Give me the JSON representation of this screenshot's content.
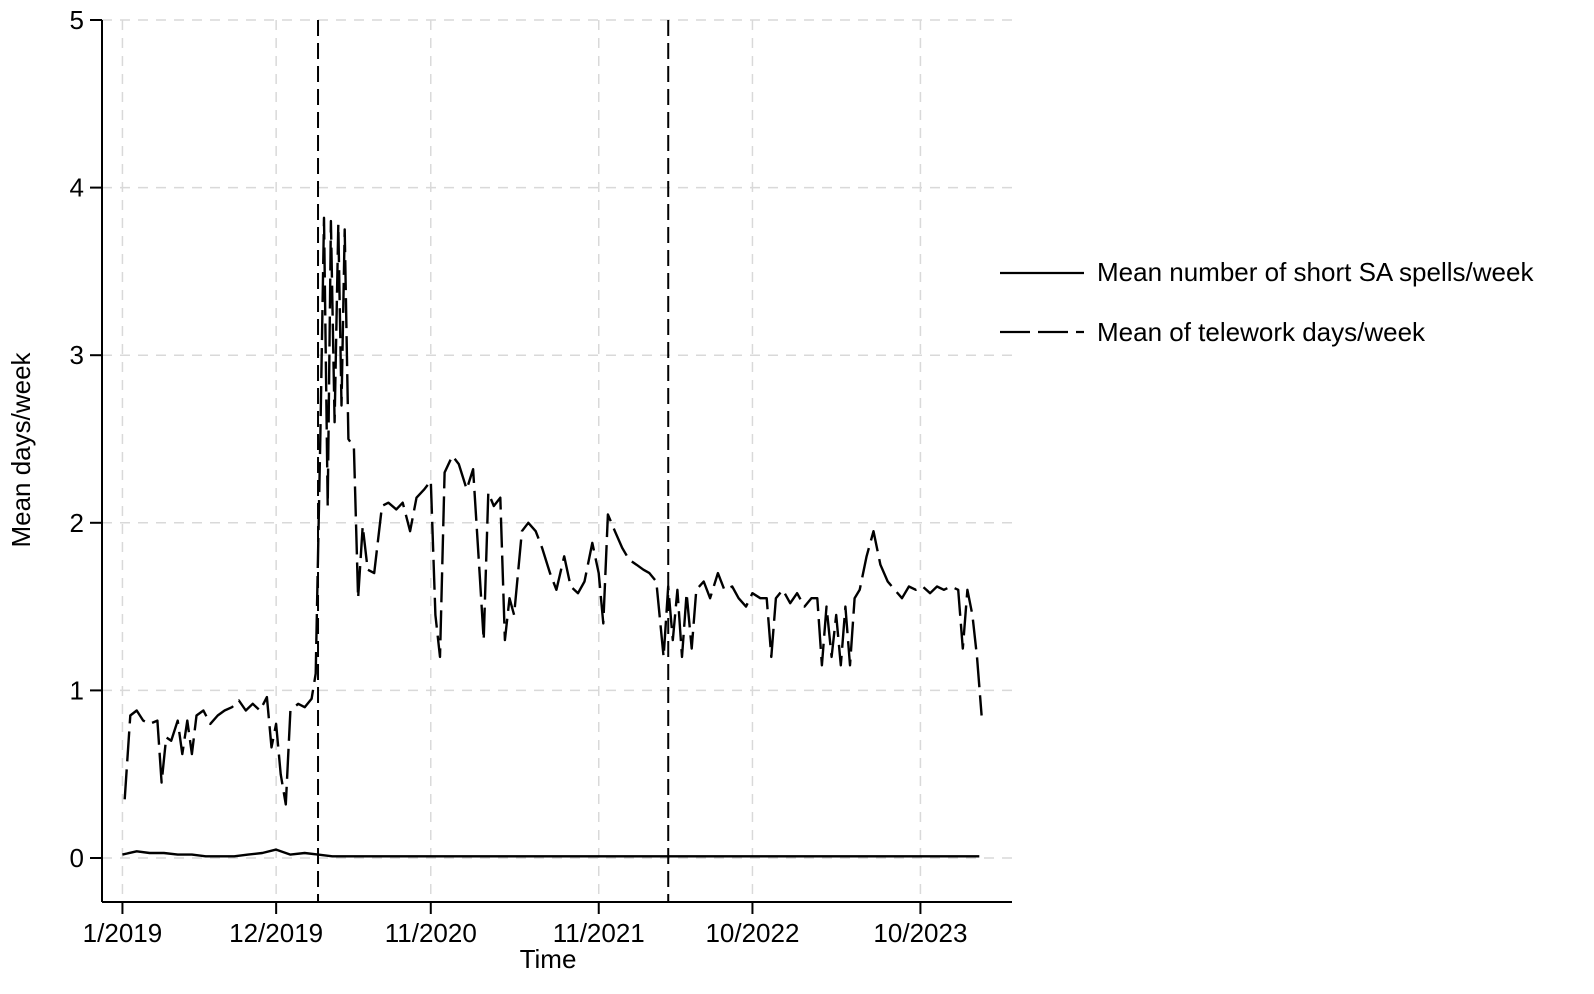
{
  "chart_data": {
    "type": "line",
    "xlabel": "Time",
    "ylabel": "Mean days/week",
    "ylim": [
      0,
      5
    ],
    "yticks": [
      0,
      1,
      2,
      3,
      4,
      5
    ],
    "x_range": [
      "2019-01",
      "2024-05"
    ],
    "xticks": [
      {
        "label": "1/2019",
        "date": "2019-01"
      },
      {
        "label": "12/2019",
        "date": "2019-12"
      },
      {
        "label": "11/2020",
        "date": "2020-11"
      },
      {
        "label": "11/2021",
        "date": "2021-11"
      },
      {
        "label": "10/2022",
        "date": "2022-10"
      },
      {
        "label": "10/2023",
        "date": "2023-10"
      }
    ],
    "grid": true,
    "legend_position": "right",
    "vertical_reference_lines": [
      "2020-03",
      "2022-04"
    ],
    "series": [
      {
        "name": "Mean number of short SA spells/week",
        "style": "solid",
        "color": "#000000",
        "points": [
          [
            "2019-01-15",
            0.02
          ],
          [
            "2019-02-15",
            0.04
          ],
          [
            "2019-03-15",
            0.03
          ],
          [
            "2019-04-15",
            0.03
          ],
          [
            "2019-05-15",
            0.02
          ],
          [
            "2019-06-15",
            0.02
          ],
          [
            "2019-07-15",
            0.01
          ],
          [
            "2019-08-15",
            0.01
          ],
          [
            "2019-09-15",
            0.01
          ],
          [
            "2019-10-15",
            0.02
          ],
          [
            "2019-11-15",
            0.03
          ],
          [
            "2019-12-15",
            0.05
          ],
          [
            "2020-01-15",
            0.02
          ],
          [
            "2020-02-15",
            0.03
          ],
          [
            "2020-03-15",
            0.02
          ],
          [
            "2020-04-15",
            0.01
          ],
          [
            "2020-06-15",
            0.01
          ],
          [
            "2020-09-15",
            0.01
          ],
          [
            "2020-12-15",
            0.01
          ],
          [
            "2021-03-15",
            0.01
          ],
          [
            "2021-06-15",
            0.01
          ],
          [
            "2021-09-15",
            0.01
          ],
          [
            "2021-11-15",
            0.01
          ],
          [
            "2022-01-15",
            0.01
          ],
          [
            "2022-04-15",
            0.01
          ],
          [
            "2022-07-15",
            0.01
          ],
          [
            "2022-10-15",
            0.01
          ],
          [
            "2023-01-15",
            0.01
          ],
          [
            "2023-04-15",
            0.01
          ],
          [
            "2023-07-15",
            0.01
          ],
          [
            "2023-10-15",
            0.01
          ],
          [
            "2024-01-15",
            0.01
          ],
          [
            "2024-02-20",
            0.01
          ]
        ]
      },
      {
        "name": "Mean of telework days/week",
        "style": "dashed",
        "color": "#000000",
        "points": [
          [
            "2019-01-20",
            0.35
          ],
          [
            "2019-02-01",
            0.85
          ],
          [
            "2019-02-15",
            0.88
          ],
          [
            "2019-03-01",
            0.82
          ],
          [
            "2019-03-15",
            0.8
          ],
          [
            "2019-04-01",
            0.82
          ],
          [
            "2019-04-10",
            0.45
          ],
          [
            "2019-04-20",
            0.72
          ],
          [
            "2019-05-01",
            0.7
          ],
          [
            "2019-05-15",
            0.82
          ],
          [
            "2019-05-25",
            0.62
          ],
          [
            "2019-06-05",
            0.82
          ],
          [
            "2019-06-15",
            0.62
          ],
          [
            "2019-06-25",
            0.85
          ],
          [
            "2019-07-10",
            0.88
          ],
          [
            "2019-07-25",
            0.8
          ],
          [
            "2019-08-10",
            0.85
          ],
          [
            "2019-08-25",
            0.88
          ],
          [
            "2019-09-10",
            0.9
          ],
          [
            "2019-09-25",
            0.94
          ],
          [
            "2019-10-10",
            0.88
          ],
          [
            "2019-10-25",
            0.92
          ],
          [
            "2019-11-10",
            0.88
          ],
          [
            "2019-11-25",
            0.96
          ],
          [
            "2019-12-05",
            0.66
          ],
          [
            "2019-12-15",
            0.8
          ],
          [
            "2019-12-25",
            0.5
          ],
          [
            "2020-01-05",
            0.32
          ],
          [
            "2020-01-15",
            0.88
          ],
          [
            "2020-02-01",
            0.92
          ],
          [
            "2020-02-15",
            0.9
          ],
          [
            "2020-03-01",
            0.95
          ],
          [
            "2020-03-10",
            1.1
          ],
          [
            "2020-03-20",
            2.5
          ],
          [
            "2020-03-28",
            3.82
          ],
          [
            "2020-04-05",
            2.1
          ],
          [
            "2020-04-12",
            3.8
          ],
          [
            "2020-04-20",
            2.6
          ],
          [
            "2020-04-28",
            3.78
          ],
          [
            "2020-05-05",
            2.7
          ],
          [
            "2020-05-12",
            3.75
          ],
          [
            "2020-05-20",
            2.5
          ],
          [
            "2020-06-01",
            2.45
          ],
          [
            "2020-06-10",
            1.55
          ],
          [
            "2020-06-20",
            1.98
          ],
          [
            "2020-07-01",
            1.72
          ],
          [
            "2020-07-15",
            1.7
          ],
          [
            "2020-08-01",
            2.1
          ],
          [
            "2020-08-15",
            2.12
          ],
          [
            "2020-09-01",
            2.08
          ],
          [
            "2020-09-15",
            2.12
          ],
          [
            "2020-10-01",
            1.95
          ],
          [
            "2020-10-15",
            2.15
          ],
          [
            "2020-11-01",
            2.2
          ],
          [
            "2020-11-15",
            2.25
          ],
          [
            "2020-11-25",
            1.45
          ],
          [
            "2020-12-05",
            1.2
          ],
          [
            "2020-12-15",
            2.3
          ],
          [
            "2021-01-01",
            2.4
          ],
          [
            "2021-01-15",
            2.35
          ],
          [
            "2021-02-01",
            2.2
          ],
          [
            "2021-02-15",
            2.32
          ],
          [
            "2021-03-01",
            1.7
          ],
          [
            "2021-03-10",
            1.3
          ],
          [
            "2021-03-20",
            2.18
          ],
          [
            "2021-04-01",
            2.1
          ],
          [
            "2021-04-15",
            2.15
          ],
          [
            "2021-04-25",
            1.3
          ],
          [
            "2021-05-05",
            1.55
          ],
          [
            "2021-05-15",
            1.45
          ],
          [
            "2021-06-01",
            1.95
          ],
          [
            "2021-06-15",
            2.0
          ],
          [
            "2021-07-01",
            1.95
          ],
          [
            "2021-07-15",
            1.85
          ],
          [
            "2021-08-01",
            1.7
          ],
          [
            "2021-08-15",
            1.6
          ],
          [
            "2021-09-01",
            1.8
          ],
          [
            "2021-09-15",
            1.62
          ],
          [
            "2021-10-01",
            1.58
          ],
          [
            "2021-10-15",
            1.65
          ],
          [
            "2021-11-01",
            1.88
          ],
          [
            "2021-11-15",
            1.7
          ],
          [
            "2021-11-25",
            1.4
          ],
          [
            "2021-12-05",
            2.05
          ],
          [
            "2021-12-20",
            1.95
          ],
          [
            "2022-01-05",
            1.85
          ],
          [
            "2022-01-20",
            1.78
          ],
          [
            "2022-02-05",
            1.75
          ],
          [
            "2022-02-20",
            1.72
          ],
          [
            "2022-03-05",
            1.7
          ],
          [
            "2022-03-20",
            1.65
          ],
          [
            "2022-04-05",
            1.2
          ],
          [
            "2022-04-15",
            1.62
          ],
          [
            "2022-04-25",
            1.3
          ],
          [
            "2022-05-05",
            1.6
          ],
          [
            "2022-05-15",
            1.2
          ],
          [
            "2022-05-25",
            1.58
          ],
          [
            "2022-06-05",
            1.25
          ],
          [
            "2022-06-15",
            1.6
          ],
          [
            "2022-07-01",
            1.65
          ],
          [
            "2022-07-15",
            1.55
          ],
          [
            "2022-08-01",
            1.7
          ],
          [
            "2022-08-15",
            1.6
          ],
          [
            "2022-09-01",
            1.62
          ],
          [
            "2022-09-15",
            1.55
          ],
          [
            "2022-10-01",
            1.5
          ],
          [
            "2022-10-15",
            1.58
          ],
          [
            "2022-11-01",
            1.55
          ],
          [
            "2022-11-15",
            1.55
          ],
          [
            "2022-11-25",
            1.2
          ],
          [
            "2022-12-05",
            1.55
          ],
          [
            "2022-12-20",
            1.6
          ],
          [
            "2023-01-05",
            1.52
          ],
          [
            "2023-01-20",
            1.58
          ],
          [
            "2023-02-05",
            1.5
          ],
          [
            "2023-02-20",
            1.55
          ],
          [
            "2023-03-05",
            1.55
          ],
          [
            "2023-03-15",
            1.15
          ],
          [
            "2023-03-25",
            1.5
          ],
          [
            "2023-04-05",
            1.2
          ],
          [
            "2023-04-15",
            1.45
          ],
          [
            "2023-04-25",
            1.15
          ],
          [
            "2023-05-05",
            1.5
          ],
          [
            "2023-05-15",
            1.15
          ],
          [
            "2023-05-25",
            1.55
          ],
          [
            "2023-06-05",
            1.6
          ],
          [
            "2023-06-20",
            1.8
          ],
          [
            "2023-07-05",
            1.95
          ],
          [
            "2023-07-20",
            1.75
          ],
          [
            "2023-08-05",
            1.65
          ],
          [
            "2023-08-20",
            1.6
          ],
          [
            "2023-09-05",
            1.55
          ],
          [
            "2023-09-20",
            1.62
          ],
          [
            "2023-10-05",
            1.6
          ],
          [
            "2023-10-20",
            1.62
          ],
          [
            "2023-11-05",
            1.58
          ],
          [
            "2023-11-20",
            1.62
          ],
          [
            "2023-12-05",
            1.6
          ],
          [
            "2023-12-20",
            1.62
          ],
          [
            "2024-01-05",
            1.6
          ],
          [
            "2024-01-15",
            1.25
          ],
          [
            "2024-01-25",
            1.6
          ],
          [
            "2024-02-05",
            1.45
          ],
          [
            "2024-02-15",
            1.2
          ],
          [
            "2024-02-25",
            0.85
          ]
        ]
      }
    ]
  }
}
